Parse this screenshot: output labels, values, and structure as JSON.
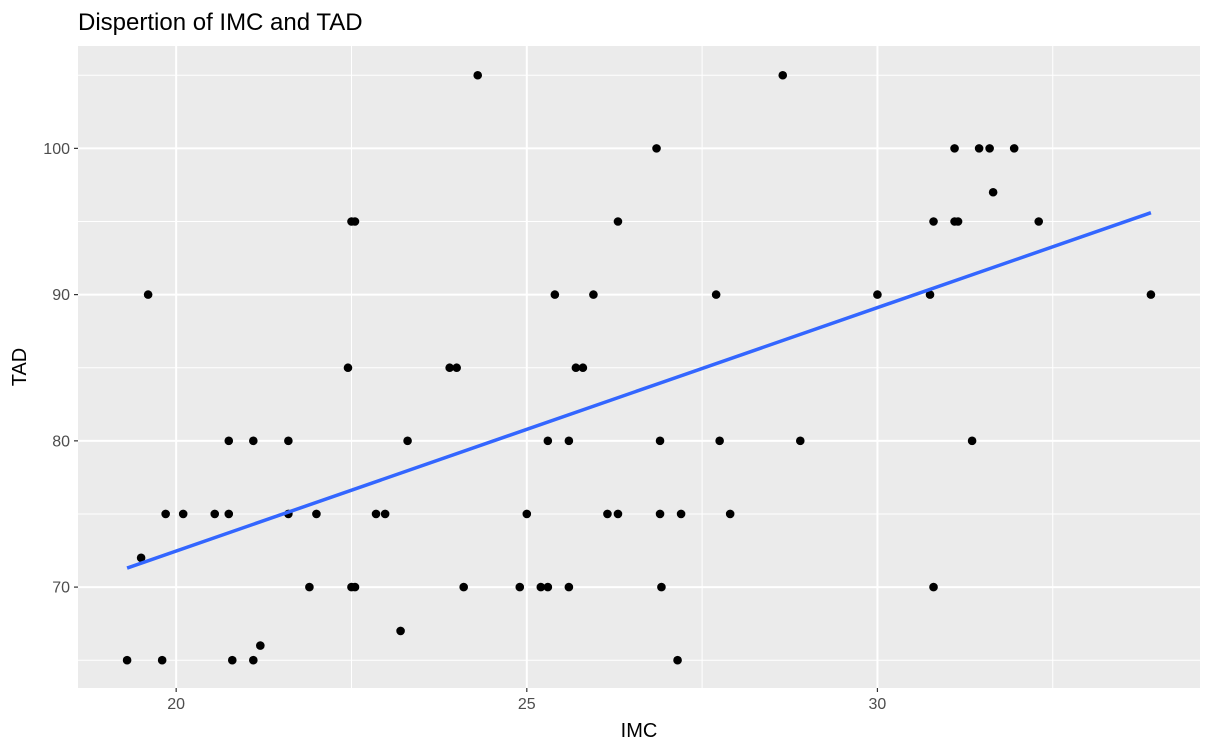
{
  "chart_data": {
    "type": "scatter",
    "title": "Dispertion of IMC and TAD",
    "xlabel": "IMC",
    "ylabel": "TAD",
    "xlim": [
      18.6,
      34.6
    ],
    "ylim": [
      63.1,
      107.0
    ],
    "x_ticks": [
      20,
      25,
      30
    ],
    "y_ticks": [
      70,
      80,
      90,
      100
    ],
    "x_tick_labels": [
      "20",
      "25",
      "30"
    ],
    "y_tick_labels": [
      "70",
      "80",
      "90",
      "100"
    ],
    "grid": true,
    "background": "#ebebeb",
    "grid_color": "#ffffff",
    "point_color": "#000000",
    "trend_line": {
      "color": "#3366ff",
      "x": [
        19.3,
        33.9
      ],
      "y": [
        71.3,
        95.6
      ]
    },
    "points": [
      [
        19.3,
        65
      ],
      [
        19.8,
        65
      ],
      [
        19.5,
        72
      ],
      [
        19.6,
        90
      ],
      [
        19.85,
        75
      ],
      [
        20.1,
        75
      ],
      [
        20.55,
        75
      ],
      [
        20.75,
        75
      ],
      [
        20.75,
        80
      ],
      [
        20.8,
        65
      ],
      [
        21.1,
        65
      ],
      [
        21.1,
        80
      ],
      [
        21.2,
        66
      ],
      [
        21.6,
        80
      ],
      [
        21.6,
        75
      ],
      [
        21.9,
        70
      ],
      [
        22.0,
        75
      ],
      [
        22.45,
        85
      ],
      [
        22.5,
        95
      ],
      [
        22.55,
        95
      ],
      [
        22.5,
        70
      ],
      [
        22.55,
        70
      ],
      [
        22.85,
        75
      ],
      [
        22.98,
        75
      ],
      [
        23.2,
        67
      ],
      [
        23.3,
        80
      ],
      [
        23.9,
        85
      ],
      [
        24.0,
        85
      ],
      [
        24.1,
        70
      ],
      [
        24.3,
        105
      ],
      [
        24.9,
        70
      ],
      [
        25.0,
        75
      ],
      [
        25.2,
        70
      ],
      [
        25.3,
        80
      ],
      [
        25.3,
        70
      ],
      [
        25.4,
        90
      ],
      [
        25.6,
        80
      ],
      [
        25.6,
        70
      ],
      [
        25.7,
        85
      ],
      [
        25.8,
        85
      ],
      [
        25.95,
        90
      ],
      [
        26.15,
        75
      ],
      [
        26.3,
        95
      ],
      [
        26.3,
        75
      ],
      [
        26.85,
        100
      ],
      [
        26.9,
        80
      ],
      [
        26.9,
        75
      ],
      [
        26.92,
        70
      ],
      [
        27.15,
        65
      ],
      [
        27.2,
        75
      ],
      [
        27.7,
        90
      ],
      [
        27.75,
        80
      ],
      [
        27.9,
        75
      ],
      [
        28.65,
        105
      ],
      [
        28.9,
        80
      ],
      [
        30.0,
        90
      ],
      [
        30.75,
        90
      ],
      [
        30.8,
        95
      ],
      [
        30.8,
        70
      ],
      [
        31.1,
        100
      ],
      [
        31.1,
        95
      ],
      [
        31.15,
        95
      ],
      [
        31.35,
        80
      ],
      [
        31.45,
        100
      ],
      [
        31.6,
        100
      ],
      [
        31.65,
        97
      ],
      [
        31.95,
        100
      ],
      [
        32.3,
        95
      ],
      [
        33.9,
        90
      ]
    ]
  }
}
